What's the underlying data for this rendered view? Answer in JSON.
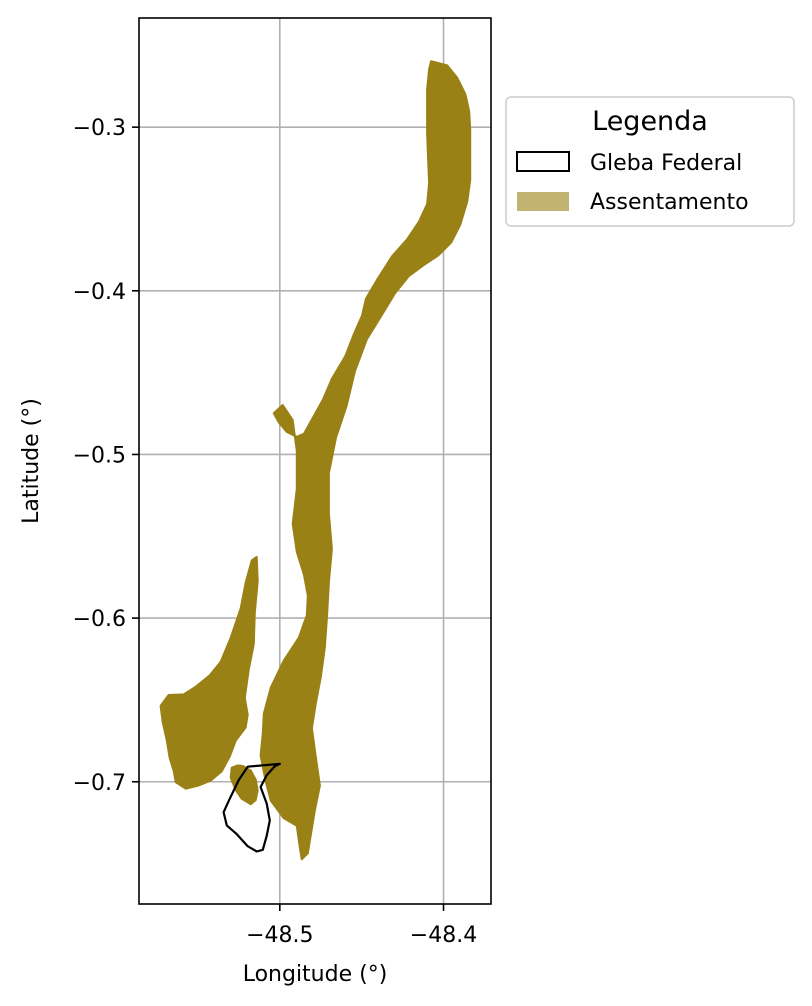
{
  "chart_data": {
    "type": "map",
    "xlabel": "Longitude (°)",
    "ylabel": "Latitude (°)",
    "xlim": [
      -48.586,
      -48.371
    ],
    "ylim": [
      -0.7747,
      -0.2333
    ],
    "x_ticks": [
      {
        "value": -48.5,
        "label": "−48.5"
      },
      {
        "value": -48.4,
        "label": "−48.4"
      }
    ],
    "y_ticks": [
      {
        "value": -0.3,
        "label": "−0.3"
      },
      {
        "value": -0.4,
        "label": "−0.4"
      },
      {
        "value": -0.5,
        "label": "−0.5"
      },
      {
        "value": -0.6,
        "label": "−0.6"
      },
      {
        "value": -0.7,
        "label": "−0.7"
      }
    ],
    "grid": true,
    "legend": {
      "title": "Legenda",
      "placement": "outside-upper-right",
      "entries": [
        {
          "label": "Gleba Federal",
          "style": "outline",
          "color": "#000000"
        },
        {
          "label": "Assentamento",
          "style": "fill",
          "color": "#9a8116"
        }
      ]
    },
    "layers": [
      {
        "name": "Assentamento",
        "legend_label": "Assentamento",
        "fill": "#9a8116",
        "polygons": [
          [
            [
              -48.4076,
              -0.2597
            ],
            [
              -48.3978,
              -0.2622
            ],
            [
              -48.3917,
              -0.2697
            ],
            [
              -48.3867,
              -0.2797
            ],
            [
              -48.3843,
              -0.2904
            ],
            [
              -48.3837,
              -0.3011
            ],
            [
              -48.3837,
              -0.3162
            ],
            [
              -48.3837,
              -0.3324
            ],
            [
              -48.3855,
              -0.3454
            ],
            [
              -48.3898,
              -0.3597
            ],
            [
              -48.3953,
              -0.3705
            ],
            [
              -48.4033,
              -0.3785
            ],
            [
              -48.4119,
              -0.3842
            ],
            [
              -48.4211,
              -0.3909
            ],
            [
              -48.4296,
              -0.4014
            ],
            [
              -48.4382,
              -0.4156
            ],
            [
              -48.4468,
              -0.4296
            ],
            [
              -48.4541,
              -0.4492
            ],
            [
              -48.4592,
              -0.4703
            ],
            [
              -48.4657,
              -0.4897
            ],
            [
              -48.47,
              -0.5114
            ],
            [
              -48.47,
              -0.5362
            ],
            [
              -48.4682,
              -0.5578
            ],
            [
              -48.47,
              -0.578
            ],
            [
              -48.4712,
              -0.5993
            ],
            [
              -48.4725,
              -0.6181
            ],
            [
              -48.4749,
              -0.6357
            ],
            [
              -48.478,
              -0.6521
            ],
            [
              -48.4804,
              -0.6673
            ],
            [
              -48.478,
              -0.6848
            ],
            [
              -48.4755,
              -0.7024
            ],
            [
              -48.4786,
              -0.7177
            ],
            [
              -48.481,
              -0.7321
            ],
            [
              -48.4829,
              -0.7437
            ],
            [
              -48.4866,
              -0.7474
            ],
            [
              -48.4878,
              -0.7401
            ],
            [
              -48.4896,
              -0.7269
            ],
            [
              -48.4976,
              -0.7222
            ],
            [
              -48.5055,
              -0.7116
            ],
            [
              -48.5086,
              -0.6998
            ],
            [
              -48.5117,
              -0.684
            ],
            [
              -48.5104,
              -0.6703
            ],
            [
              -48.5098,
              -0.6585
            ],
            [
              -48.5055,
              -0.6424
            ],
            [
              -48.4976,
              -0.626
            ],
            [
              -48.4884,
              -0.612
            ],
            [
              -48.4835,
              -0.5983
            ],
            [
              -48.4829,
              -0.5861
            ],
            [
              -48.4853,
              -0.5733
            ],
            [
              -48.4896,
              -0.5596
            ],
            [
              -48.4921,
              -0.5424
            ],
            [
              -48.4896,
              -0.5209
            ],
            [
              -48.4896,
              -0.4978
            ],
            [
              -48.4921,
              -0.479
            ],
            [
              -48.4982,
              -0.4698
            ],
            [
              -48.5037,
              -0.4748
            ],
            [
              -48.5006,
              -0.4804
            ],
            [
              -48.4958,
              -0.4862
            ],
            [
              -48.4897,
              -0.4892
            ],
            [
              -48.4853,
              -0.4874
            ],
            [
              -48.4737,
              -0.4665
            ],
            [
              -48.4682,
              -0.4537
            ],
            [
              -48.46,
              -0.4399
            ],
            [
              -48.4547,
              -0.4263
            ],
            [
              -48.4498,
              -0.4152
            ],
            [
              -48.4474,
              -0.4048
            ],
            [
              -48.4406,
              -0.3932
            ],
            [
              -48.4315,
              -0.379
            ],
            [
              -48.4223,
              -0.3686
            ],
            [
              -48.4149,
              -0.3576
            ],
            [
              -48.41,
              -0.347
            ],
            [
              -48.4088,
              -0.3344
            ],
            [
              -48.4094,
              -0.3199
            ],
            [
              -48.41,
              -0.3037
            ],
            [
              -48.41,
              -0.2905
            ],
            [
              -48.41,
              -0.277
            ],
            [
              -48.4088,
              -0.2645
            ]
          ],
          [
            [
              -48.5587,
              -0.6466
            ],
            [
              -48.5514,
              -0.642
            ],
            [
              -48.5428,
              -0.635
            ],
            [
              -48.5361,
              -0.6267
            ],
            [
              -48.53,
              -0.612
            ],
            [
              -48.5239,
              -0.594
            ],
            [
              -48.5208,
              -0.5782
            ],
            [
              -48.5171,
              -0.5647
            ],
            [
              -48.5141,
              -0.5626
            ],
            [
              -48.5135,
              -0.5776
            ],
            [
              -48.5153,
              -0.5965
            ],
            [
              -48.5159,
              -0.6158
            ],
            [
              -48.519,
              -0.6316
            ],
            [
              -48.5214,
              -0.6488
            ],
            [
              -48.5196,
              -0.6589
            ],
            [
              -48.5208,
              -0.6668
            ],
            [
              -48.5269,
              -0.6748
            ],
            [
              -48.5306,
              -0.6846
            ],
            [
              -48.5355,
              -0.6937
            ],
            [
              -48.5422,
              -0.6993
            ],
            [
              -48.5495,
              -0.7023
            ],
            [
              -48.5575,
              -0.7042
            ],
            [
              -48.5636,
              -0.7002
            ],
            [
              -48.5648,
              -0.6934
            ],
            [
              -48.5673,
              -0.6853
            ],
            [
              -48.5691,
              -0.6745
            ],
            [
              -48.5716,
              -0.6633
            ],
            [
              -48.5728,
              -0.6536
            ],
            [
              -48.5679,
              -0.647
            ]
          ],
          [
            [
              -48.5294,
              -0.6914
            ],
            [
              -48.5257,
              -0.69
            ],
            [
              -48.5226,
              -0.6904
            ],
            [
              -48.5177,
              -0.6931
            ],
            [
              -48.5147,
              -0.6987
            ],
            [
              -48.5135,
              -0.7053
            ],
            [
              -48.5147,
              -0.7112
            ],
            [
              -48.5178,
              -0.7137
            ],
            [
              -48.5233,
              -0.7104
            ],
            [
              -48.527,
              -0.705
            ],
            [
              -48.53,
              -0.6976
            ]
          ]
        ]
      },
      {
        "name": "Gleba Federal",
        "legend_label": "Gleba Federal",
        "stroke": "#000000",
        "polygons": [
          [
            [
              -48.5,
              -0.689
            ],
            [
              -48.5196,
              -0.6908
            ],
            [
              -48.5251,
              -0.699
            ],
            [
              -48.5306,
              -0.7104
            ],
            [
              -48.5343,
              -0.7186
            ],
            [
              -48.5324,
              -0.7267
            ],
            [
              -48.5263,
              -0.732
            ],
            [
              -48.5196,
              -0.7394
            ],
            [
              -48.5141,
              -0.7426
            ],
            [
              -48.5104,
              -0.7416
            ],
            [
              -48.508,
              -0.733
            ],
            [
              -48.5061,
              -0.7236
            ],
            [
              -48.508,
              -0.7133
            ],
            [
              -48.5117,
              -0.7032
            ],
            [
              -48.508,
              -0.696
            ],
            [
              -48.5031,
              -0.6906
            ]
          ]
        ]
      }
    ]
  }
}
